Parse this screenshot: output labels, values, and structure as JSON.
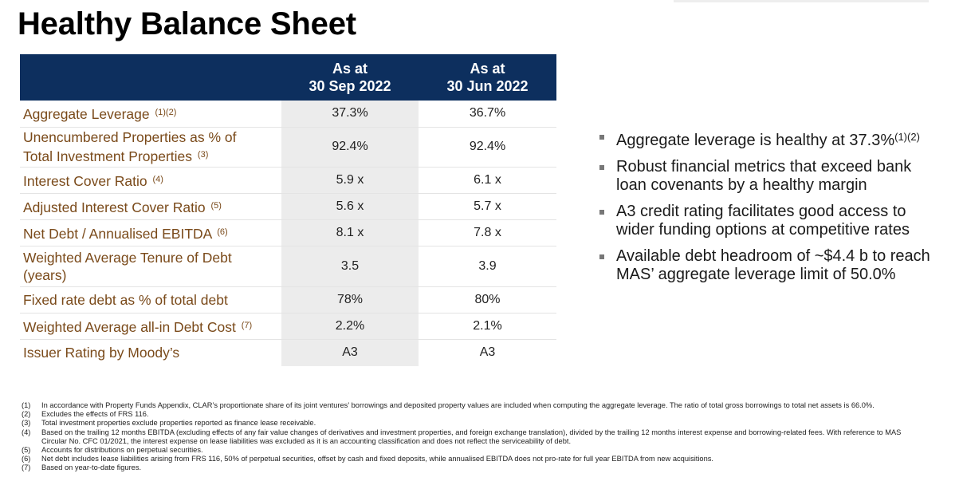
{
  "page": {
    "title": "Healthy Balance Sheet"
  },
  "table": {
    "header": {
      "col1_line1": "As at",
      "col1_line2": "30 Sep 2022",
      "col2_line1": "As at",
      "col2_line2": "30 Jun 2022"
    },
    "rows": [
      {
        "label": "Aggregate Leverage",
        "label2": "",
        "note": "(1)(2)",
        "v1": "37.3%",
        "v2": "36.7%"
      },
      {
        "label": "Unencumbered Properties as % of",
        "label2": "Total Investment Properties",
        "note": "(3)",
        "v1": "92.4%",
        "v2": "92.4%"
      },
      {
        "label": "Interest Cover Ratio",
        "label2": "",
        "note": "(4)",
        "v1": "5.9 x",
        "v2": "6.1 x"
      },
      {
        "label": "Adjusted Interest Cover Ratio",
        "label2": "",
        "note": "(5)",
        "v1": "5.6 x",
        "v2": "5.7 x"
      },
      {
        "label": "Net Debt / Annualised EBITDA",
        "label2": "",
        "note": "(6)",
        "v1": "8.1 x",
        "v2": "7.8 x"
      },
      {
        "label": "Weighted Average Tenure of Debt",
        "label2": "(years)",
        "note": "",
        "v1": "3.5",
        "v2": "3.9"
      },
      {
        "label": "Fixed rate debt as % of total debt",
        "label2": "",
        "note": "",
        "v1": "78%",
        "v2": "80%"
      },
      {
        "label": "Weighted Average all-in Debt Cost",
        "label2": "",
        "note": "(7)",
        "v1": "2.2%",
        "v2": "2.1%"
      },
      {
        "label": "Issuer Rating by Moody’s",
        "label2": "",
        "note": "",
        "v1": "A3",
        "v2": "A3"
      }
    ]
  },
  "bullets": [
    {
      "text": "Aggregate leverage is healthy at 37.3%",
      "note": "(1)(2)"
    },
    {
      "text": "Robust financial metrics that exceed bank loan covenants by a healthy margin",
      "note": ""
    },
    {
      "text": "A3 credit rating facilitates good access to wider funding options at competitive rates",
      "note": ""
    },
    {
      "text": "Available debt headroom of ~$4.4 b to reach MAS’ aggregate leverage limit of 50.0%",
      "note": ""
    }
  ],
  "footnotes": [
    {
      "num": "(1)",
      "text": "In accordance with Property Funds Appendix, CLAR’s proportionate share of its joint ventures’ borrowings and deposited property values are included when computing the aggregate leverage. The ratio of total gross borrowings to total net assets is 66.0%."
    },
    {
      "num": "(2)",
      "text": "Excludes the effects of FRS 116."
    },
    {
      "num": "(3)",
      "text": "Total investment properties exclude properties reported as finance lease receivable."
    },
    {
      "num": "(4)",
      "text": "Based on the trailing 12 months EBITDA (excluding effects of any fair value changes of derivatives and investment properties, and foreign exchange translation), divided by the trailing 12 months interest expense and borrowing-related fees. With reference to MAS Circular No. CFC 01/2021, the interest expense on lease liabilities was excluded as it is an accounting classification and does not reflect the serviceability of debt."
    },
    {
      "num": "(5)",
      "text": "Accounts for distributions on perpetual securities."
    },
    {
      "num": "(6)",
      "text": "Net debt includes lease liabilities arising from FRS 116, 50% of perpetual securities, offset by cash and fixed deposits, while annualised EBITDA does not pro-rate for full year EBITDA from new acquisitions."
    },
    {
      "num": "(7)",
      "text": "Based on year-to-date figures."
    }
  ],
  "colors": {
    "header_bg": "#0d2f5e",
    "label_text": "#7a4a1a",
    "shaded_column": "#ececec",
    "bullet_marker": "#777777"
  }
}
